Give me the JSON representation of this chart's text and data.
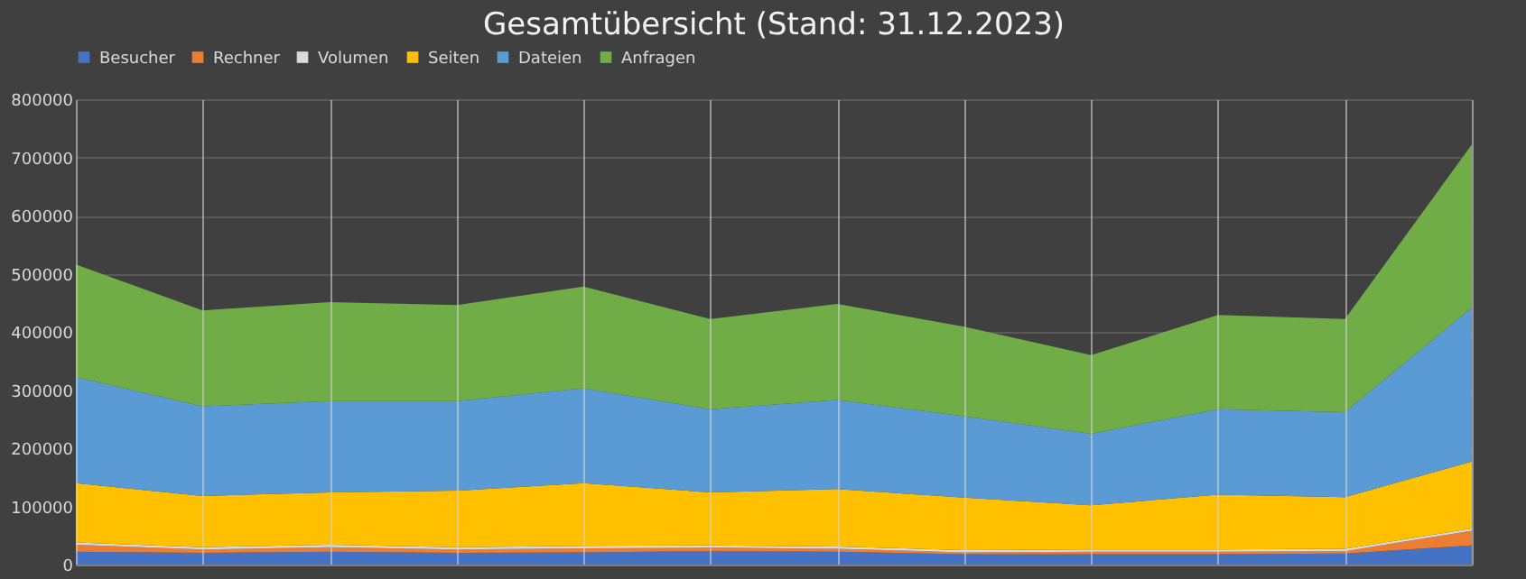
{
  "chart_data": {
    "type": "area",
    "title": "Gesamtübersicht (Stand: 31.12.2023)",
    "stacked": true,
    "categories": [
      null,
      null,
      null,
      null,
      null,
      null,
      null,
      null,
      null,
      null,
      null,
      null
    ],
    "series": [
      {
        "name": "Besucher",
        "color": "#4472c4",
        "values": [
          22000,
          20000,
          22000,
          20000,
          21000,
          23000,
          22000,
          18000,
          18000,
          18000,
          19000,
          33000
        ]
      },
      {
        "name": "Rechner",
        "color": "#ed7d31",
        "values": [
          12000,
          6000,
          8000,
          6000,
          7000,
          6000,
          5000,
          3000,
          4000,
          4000,
          4000,
          25000
        ]
      },
      {
        "name": "Volumen",
        "color": "#d9d9d9",
        "values": [
          4000,
          4000,
          4000,
          4000,
          4000,
          4000,
          4000,
          4000,
          4000,
          4000,
          4000,
          4000
        ]
      },
      {
        "name": "Seiten",
        "color": "#ffc000",
        "values": [
          102000,
          88000,
          90000,
          97000,
          108000,
          91000,
          99000,
          90000,
          76000,
          94000,
          89000,
          115000
        ]
      },
      {
        "name": "Dateien",
        "color": "#5b9bd5",
        "values": [
          182000,
          154000,
          157000,
          154000,
          163000,
          143000,
          153000,
          140000,
          123000,
          147000,
          146000,
          265000
        ]
      },
      {
        "name": "Anfragen",
        "color": "#70ad47",
        "values": [
          194000,
          165000,
          170000,
          165000,
          175000,
          155000,
          165000,
          154000,
          135000,
          162000,
          160000,
          280000
        ]
      }
    ],
    "ylim": [
      0,
      800000
    ],
    "yticks": [
      0,
      100000,
      200000,
      300000,
      400000,
      500000,
      600000,
      700000,
      800000
    ],
    "grid": true,
    "legend": "top",
    "tick_labels": "y"
  }
}
